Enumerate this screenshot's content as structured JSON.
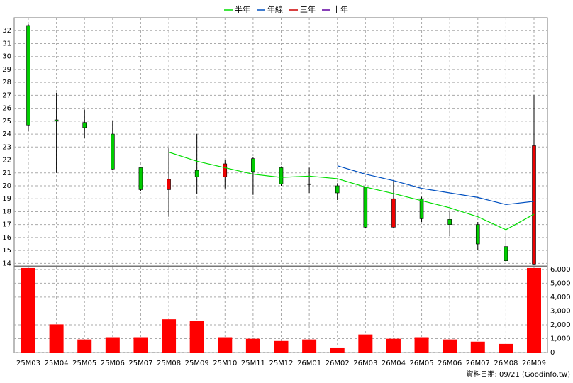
{
  "chart_data": {
    "type": "candlestick",
    "categories": [
      "25M03",
      "25M04",
      "25M05",
      "25M06",
      "25M07",
      "25M08",
      "25M09",
      "25M10",
      "25M11",
      "25M12",
      "26M01",
      "26M02",
      "26M03",
      "26M04",
      "26M05",
      "26M06",
      "26M07",
      "26M08",
      "26M09"
    ],
    "open": [
      32.4,
      25.1,
      24.9,
      24.0,
      21.4,
      19.7,
      21.2,
      20.7,
      22.1,
      21.4,
      20.15,
      20.0,
      19.9,
      16.8,
      19.0,
      17.4,
      17.0,
      15.3,
      13.95
    ],
    "high": [
      32.5,
      27.2,
      25.9,
      25.0,
      21.4,
      22.9,
      24.0,
      22.0,
      22.2,
      21.5,
      21.4,
      20.2,
      19.9,
      20.4,
      19.15,
      18.0,
      17.2,
      16.35,
      27.0
    ],
    "low": [
      24.2,
      21.0,
      23.7,
      21.2,
      19.6,
      17.6,
      19.4,
      19.8,
      19.3,
      20.0,
      19.45,
      18.9,
      16.7,
      16.7,
      17.2,
      16.1,
      15.0,
      14.1,
      13.9
    ],
    "close": [
      24.7,
      25.0,
      24.5,
      21.3,
      19.7,
      20.5,
      20.7,
      21.7,
      21.1,
      20.15,
      20.1,
      19.45,
      16.8,
      19.0,
      17.45,
      17.0,
      15.5,
      14.2,
      23.1
    ],
    "up_color": "#ee0000",
    "down_color": "#00cc00",
    "series": [
      {
        "name": "半年",
        "color": "#00dd00",
        "values": [
          null,
          null,
          null,
          null,
          null,
          22.6,
          21.9,
          21.4,
          20.9,
          20.65,
          20.75,
          20.55,
          19.9,
          19.4,
          18.85,
          18.3,
          17.6,
          16.6,
          17.8
        ]
      },
      {
        "name": "年線",
        "color": "#0050c0",
        "values": [
          null,
          null,
          null,
          null,
          null,
          null,
          null,
          null,
          null,
          null,
          null,
          21.55,
          20.9,
          20.4,
          19.8,
          19.45,
          19.1,
          18.55,
          18.8
        ]
      },
      {
        "name": "三年",
        "color": "#cc0000",
        "values": [
          null,
          null,
          null,
          null,
          null,
          null,
          null,
          null,
          null,
          null,
          null,
          null,
          null,
          null,
          null,
          null,
          null,
          null,
          null
        ]
      },
      {
        "name": "十年",
        "color": "#6000a0",
        "values": [
          null,
          null,
          null,
          null,
          null,
          null,
          null,
          null,
          null,
          null,
          null,
          null,
          null,
          null,
          null,
          null,
          null,
          null,
          null
        ]
      }
    ],
    "ylim": [
      13.8,
      33
    ],
    "yticks": [
      14,
      15,
      16,
      17,
      18,
      19,
      20,
      21,
      22,
      23,
      24,
      25,
      26,
      27,
      28,
      29,
      30,
      31,
      32
    ],
    "volume": {
      "color": "#ff0000",
      "values": [
        6100,
        2030,
        940,
        1100,
        1100,
        2400,
        2290,
        1100,
        990,
        830,
        940,
        360,
        1300,
        990,
        1100,
        940,
        780,
        620,
        6100
      ]
    },
    "y2lim": [
      0,
      6200
    ],
    "y2ticks": [
      0,
      {
        "value": 1000,
        "label": "1,000"
      },
      {
        "value": 2000,
        "label": "2,000"
      },
      {
        "value": 3000,
        "label": "3,000"
      },
      {
        "value": 4000,
        "label": "4,000"
      },
      {
        "value": 5000,
        "label": "5,000"
      },
      {
        "value": 6000,
        "label": "6,000"
      }
    ],
    "grid": true,
    "footer": "資料日期: 09/21 (Goodinfo.tw)"
  }
}
